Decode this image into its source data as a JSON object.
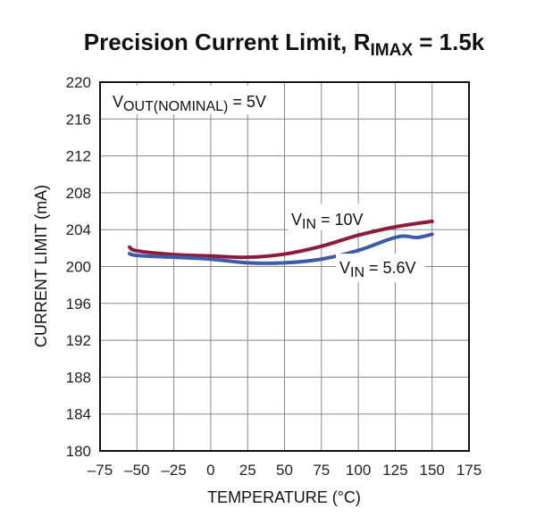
{
  "chart_data": {
    "type": "line",
    "title": {
      "main": "Precision Current Limit, R",
      "sub": "IMAX",
      "rest": " = 1.5k"
    },
    "xlabel": "TEMPERATURE (°C)",
    "ylabel": "CURRENT LIMIT (mA)",
    "xlim": [
      -75,
      175
    ],
    "ylim": [
      180,
      220
    ],
    "xticks": [
      -75,
      -50,
      -25,
      0,
      25,
      50,
      75,
      100,
      125,
      150,
      175
    ],
    "xtick_labels": [
      "–75",
      "–50",
      "–25",
      "0",
      "25",
      "50",
      "75",
      "100",
      "125",
      "150",
      "175"
    ],
    "yticks": [
      180,
      184,
      188,
      192,
      196,
      200,
      204,
      208,
      212,
      216,
      220
    ],
    "grid": true,
    "annotations": [
      {
        "main": "V",
        "sub": "OUT(NOMINAL)",
        "rest": " = 5V"
      }
    ],
    "series": [
      {
        "name": {
          "main": "V",
          "sub": "IN",
          "rest": " = 10V"
        },
        "color": "#8c1c3c",
        "x": [
          -55,
          -50,
          -25,
          0,
          25,
          50,
          75,
          100,
          125,
          150
        ],
        "y": [
          202.1,
          201.7,
          201.3,
          201.15,
          201.0,
          201.35,
          202.2,
          203.4,
          204.3,
          204.9
        ]
      },
      {
        "name": {
          "main": "V",
          "sub": "IN",
          "rest": " = 5.6V"
        },
        "color": "#3d5ba9",
        "x": [
          -55,
          -50,
          -25,
          0,
          25,
          50,
          75,
          100,
          120,
          130,
          140,
          150
        ],
        "y": [
          201.4,
          201.2,
          201.0,
          200.8,
          200.4,
          200.4,
          200.8,
          201.75,
          202.9,
          203.3,
          203.15,
          203.5
        ]
      }
    ]
  }
}
